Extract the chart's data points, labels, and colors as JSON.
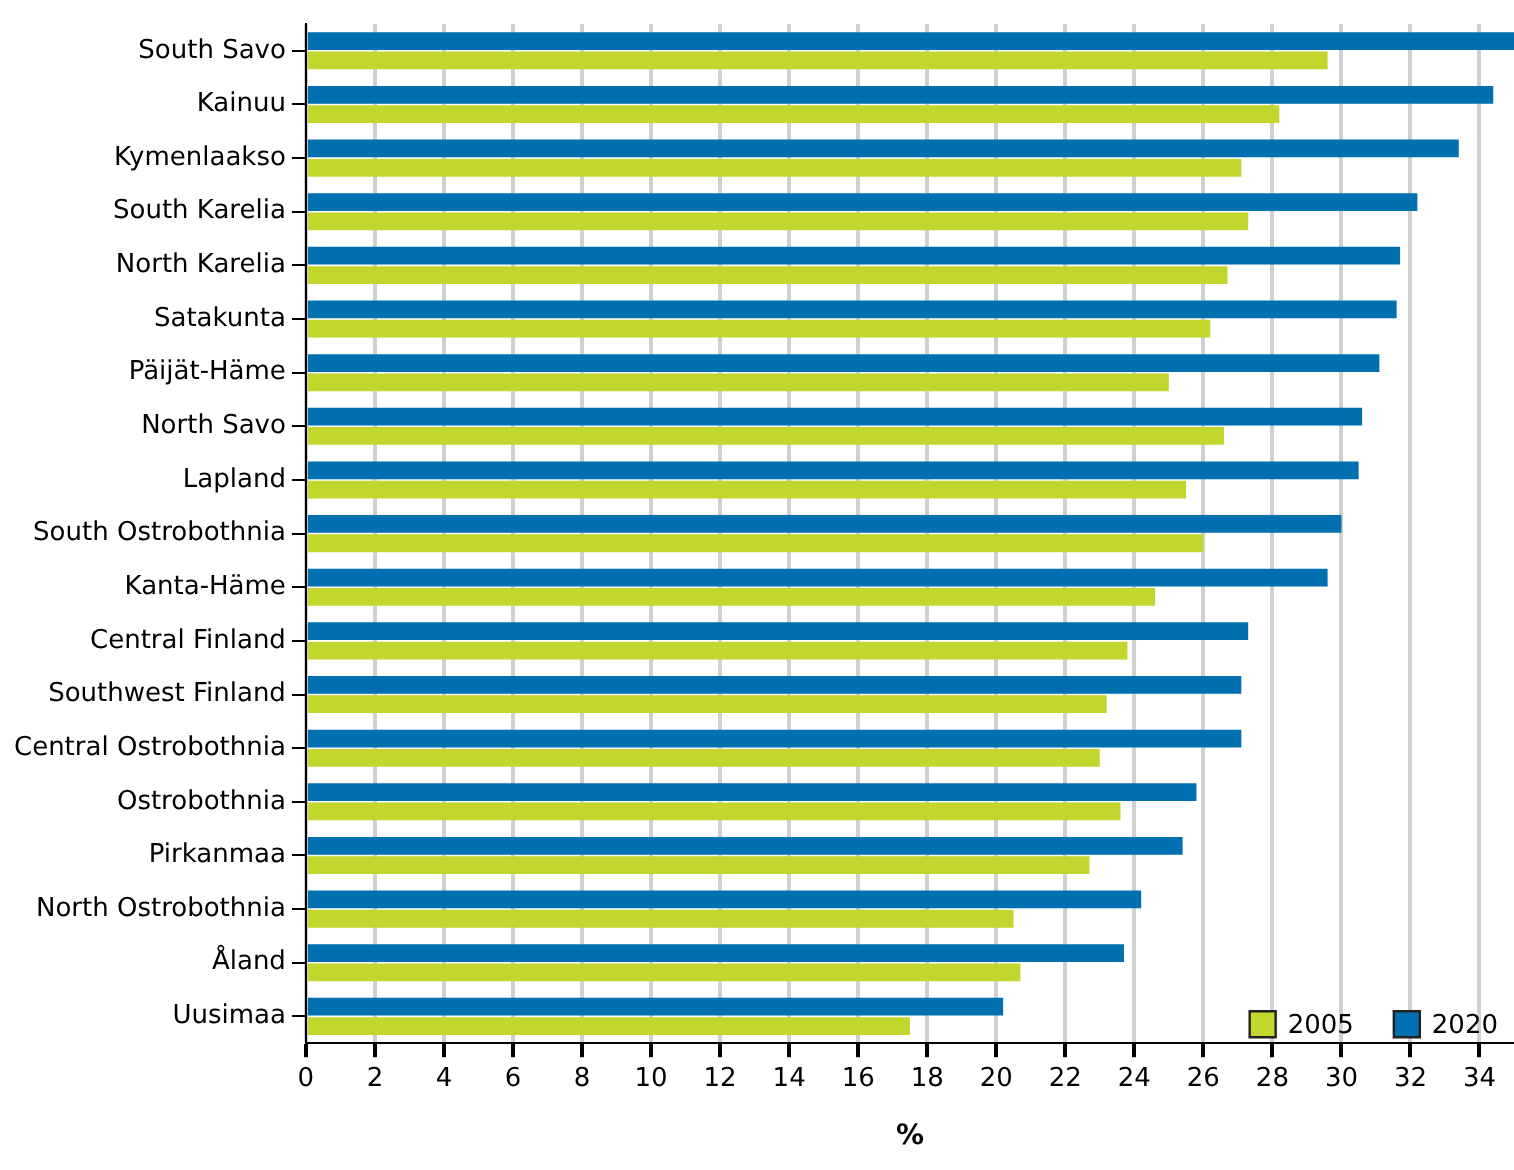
{
  "chart_data": {
    "type": "bar",
    "orientation": "horizontal",
    "xlabel": "%",
    "categories": [
      "South Savo",
      "Kainuu",
      "Kymenlaakso",
      "South Karelia",
      "North Karelia",
      "Satakunta",
      "Päijät-Häme",
      "North Savo",
      "Lapland",
      "South Ostrobothnia",
      "Kanta-Häme",
      "Central Finland",
      "Southwest Finland",
      "Central Ostrobothnia",
      "Ostrobothnia",
      "Pirkanmaa",
      "North Ostrobothnia",
      "Åland",
      "Uusimaa"
    ],
    "series": [
      {
        "name": "2020",
        "color": "#0070b0",
        "values": [
          35.0,
          34.4,
          33.4,
          32.2,
          31.7,
          31.6,
          31.1,
          30.6,
          30.5,
          30.0,
          29.6,
          27.3,
          27.1,
          27.1,
          25.8,
          25.4,
          24.2,
          23.7,
          20.2
        ]
      },
      {
        "name": "2005",
        "color": "#c2d62e",
        "values": [
          29.6,
          28.2,
          27.1,
          27.3,
          26.7,
          26.2,
          25.0,
          26.6,
          25.5,
          26.0,
          24.6,
          23.8,
          23.2,
          23.0,
          23.6,
          22.7,
          20.5,
          20.7,
          17.5
        ]
      }
    ],
    "xlim": [
      0,
      35
    ],
    "xticks": [
      0,
      2,
      4,
      6,
      8,
      10,
      12,
      14,
      16,
      18,
      20,
      22,
      24,
      26,
      28,
      30,
      32,
      34
    ],
    "grid": "x",
    "legend": "bottom right"
  }
}
